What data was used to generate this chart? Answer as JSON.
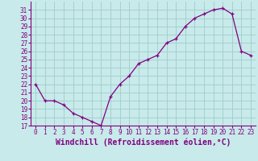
{
  "x": [
    0,
    1,
    2,
    3,
    4,
    5,
    6,
    7,
    8,
    9,
    10,
    11,
    12,
    13,
    14,
    15,
    16,
    17,
    18,
    19,
    20,
    21,
    22,
    23
  ],
  "y": [
    22,
    20,
    20,
    19.5,
    18.5,
    18,
    17.5,
    17,
    20.5,
    22,
    23,
    24.5,
    25,
    25.5,
    27,
    27.5,
    29,
    30,
    30.5,
    31.0,
    31.2,
    30.5,
    26,
    25.5
  ],
  "line_color": "#800080",
  "bg_color": "#c8eaea",
  "grid_color": "#a0cccc",
  "xlabel": "Windchill (Refroidissement éolien,°C)",
  "ylabel": "",
  "title": "",
  "xlim": [
    -0.5,
    23.5
  ],
  "ylim": [
    17,
    32
  ],
  "yticks": [
    17,
    18,
    19,
    20,
    21,
    22,
    23,
    24,
    25,
    26,
    27,
    28,
    29,
    30,
    31
  ],
  "xticks": [
    0,
    1,
    2,
    3,
    4,
    5,
    6,
    7,
    8,
    9,
    10,
    11,
    12,
    13,
    14,
    15,
    16,
    17,
    18,
    19,
    20,
    21,
    22,
    23
  ],
  "tick_label_fontsize": 5.5,
  "xlabel_fontsize": 7.0,
  "marker": "+"
}
